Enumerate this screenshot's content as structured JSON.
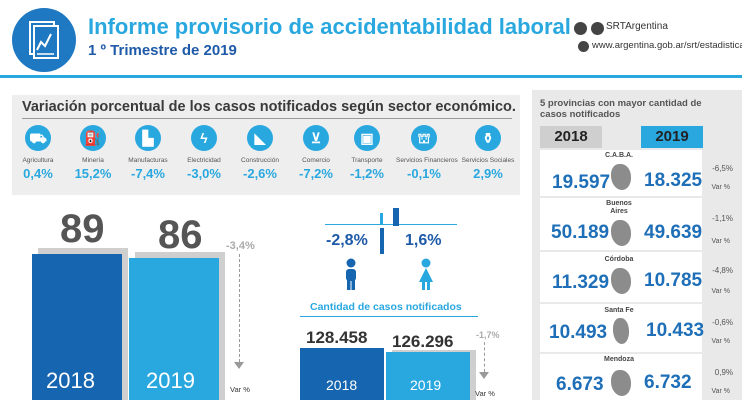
{
  "header": {
    "title": "Informe provisorio de accidentabilidad laboral",
    "subtitle": "1 º Trimestre de 2019",
    "social_handle": "SRTArgentina",
    "url": "www.argentina.gob.ar/srt/estadisticas",
    "icons": [
      "report-logo-icon",
      "instagram-icon",
      "twitter-icon",
      "web-icon"
    ]
  },
  "variation": {
    "heading": "Variación porcentual de los casos notificados según sector económico.",
    "sectors": [
      {
        "label": "Agricultura",
        "value": "0,4%",
        "icon": "tractor-icon"
      },
      {
        "label": "Minería",
        "value": "15,2%",
        "icon": "oil-pump-icon"
      },
      {
        "label": "Manufacturas",
        "value": "-7,4%",
        "icon": "factory-icon"
      },
      {
        "label": "Electricidad",
        "value": "-3,0%",
        "icon": "lightning-icon"
      },
      {
        "label": "Construcción",
        "value": "-2,6%",
        "icon": "wheelbarrow-icon"
      },
      {
        "label": "Comercio",
        "value": "-7,2%",
        "icon": "cart-icon"
      },
      {
        "label": "Transporte",
        "value": "-1,2%",
        "icon": "bus-icon"
      },
      {
        "label": "Servicios Financieros",
        "value": "-0,1%",
        "icon": "bank-icon"
      },
      {
        "label": "Servicios Sociales",
        "value": "2,9%",
        "icon": "bottles-icon"
      }
    ]
  },
  "index_bars": {
    "years": [
      "2018",
      "2019"
    ],
    "values": [
      "89",
      "86"
    ],
    "variation": "-3,4%",
    "var_label": "Var %",
    "colors": {
      "2018": "#1565b0",
      "2019": "#29a8e0"
    }
  },
  "gender": {
    "male_pct": "-2,8%",
    "female_pct": "1,6%",
    "male_icon": "man-icon",
    "female_icon": "woman-icon"
  },
  "cases": {
    "title": "Cantidad de casos notificados",
    "years": [
      "2018",
      "2019"
    ],
    "values": [
      "128.458",
      "126.296"
    ],
    "variation": "-1,7%",
    "var_label": "Var %"
  },
  "provinces": {
    "heading": "5 provincias con mayor cantidad de casos notificados",
    "year_2018": "2018",
    "year_2019": "2019",
    "rows": [
      {
        "name": "C.A.B.A.",
        "v2018": "19.597",
        "v2019": "18.325",
        "var": "-6,5%",
        "var_label": "Var %"
      },
      {
        "name": "Buenos Aires",
        "v2018": "50.189",
        "v2019": "49.639",
        "var": "-1,1%",
        "var_label": "Var %"
      },
      {
        "name": "Córdoba",
        "v2018": "11.329",
        "v2019": "10.785",
        "var": "-4,8%",
        "var_label": "Var %"
      },
      {
        "name": "Santa Fe",
        "v2018": "10.493",
        "v2019": "10.433",
        "var": "-0,6%",
        "var_label": "Var %"
      },
      {
        "name": "Mendoza",
        "v2018": "6.673",
        "v2019": "6.732",
        "var": "0,9%",
        "var_label": "Var %"
      }
    ]
  }
}
